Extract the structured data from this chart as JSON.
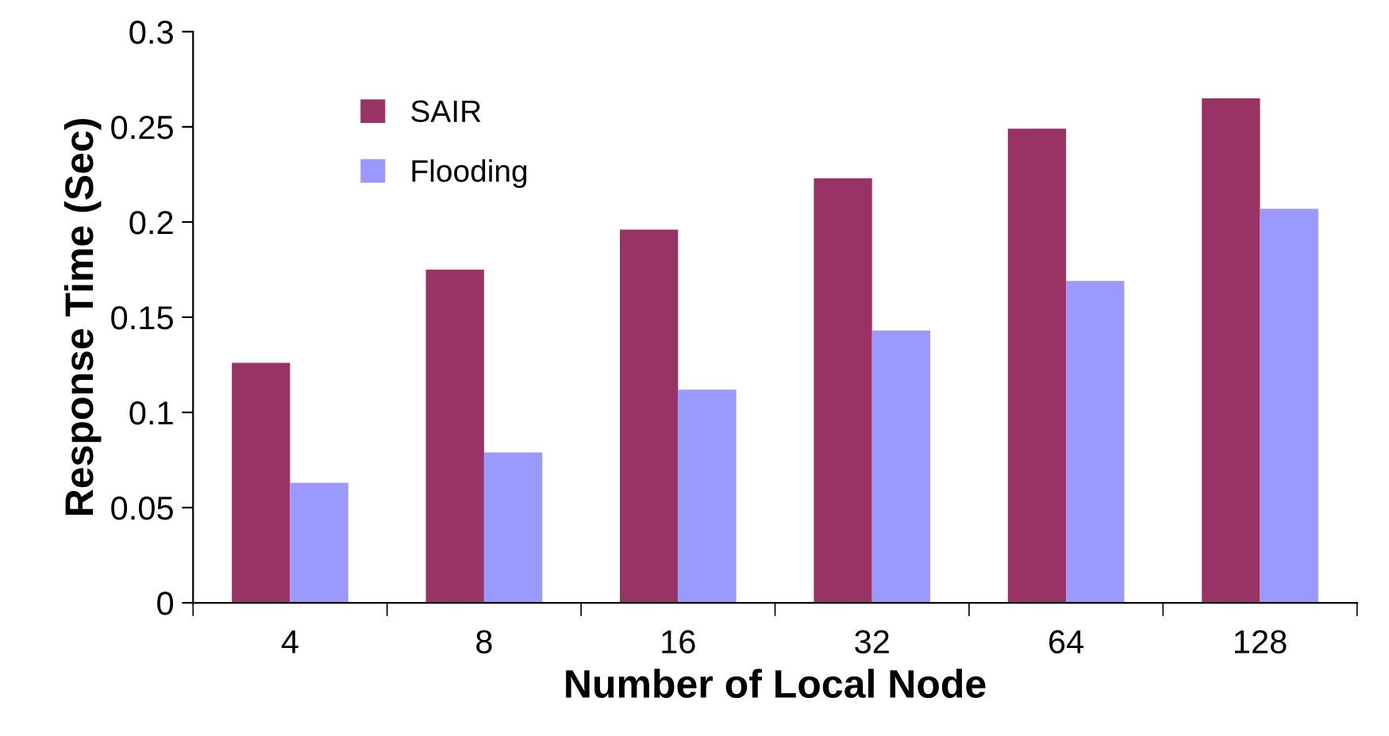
{
  "chart_data": {
    "type": "bar",
    "xlabel": "Number of Local Node",
    "ylabel": "Response Time (Sec)",
    "categories": [
      "4",
      "8",
      "16",
      "32",
      "64",
      "128"
    ],
    "series": [
      {
        "name": "SAIR",
        "color": "#993366",
        "values": [
          0.126,
          0.175,
          0.196,
          0.223,
          0.249,
          0.265
        ]
      },
      {
        "name": "Flooding",
        "color": "#9999ff",
        "values": [
          0.063,
          0.079,
          0.112,
          0.143,
          0.169,
          0.207
        ]
      }
    ],
    "ylim": [
      0,
      0.3
    ],
    "yticks": [
      {
        "value": 0,
        "label": "0"
      },
      0.05,
      0.1,
      0.15,
      0.2,
      0.25,
      0.3
    ],
    "grid": false,
    "legend": "top left"
  }
}
